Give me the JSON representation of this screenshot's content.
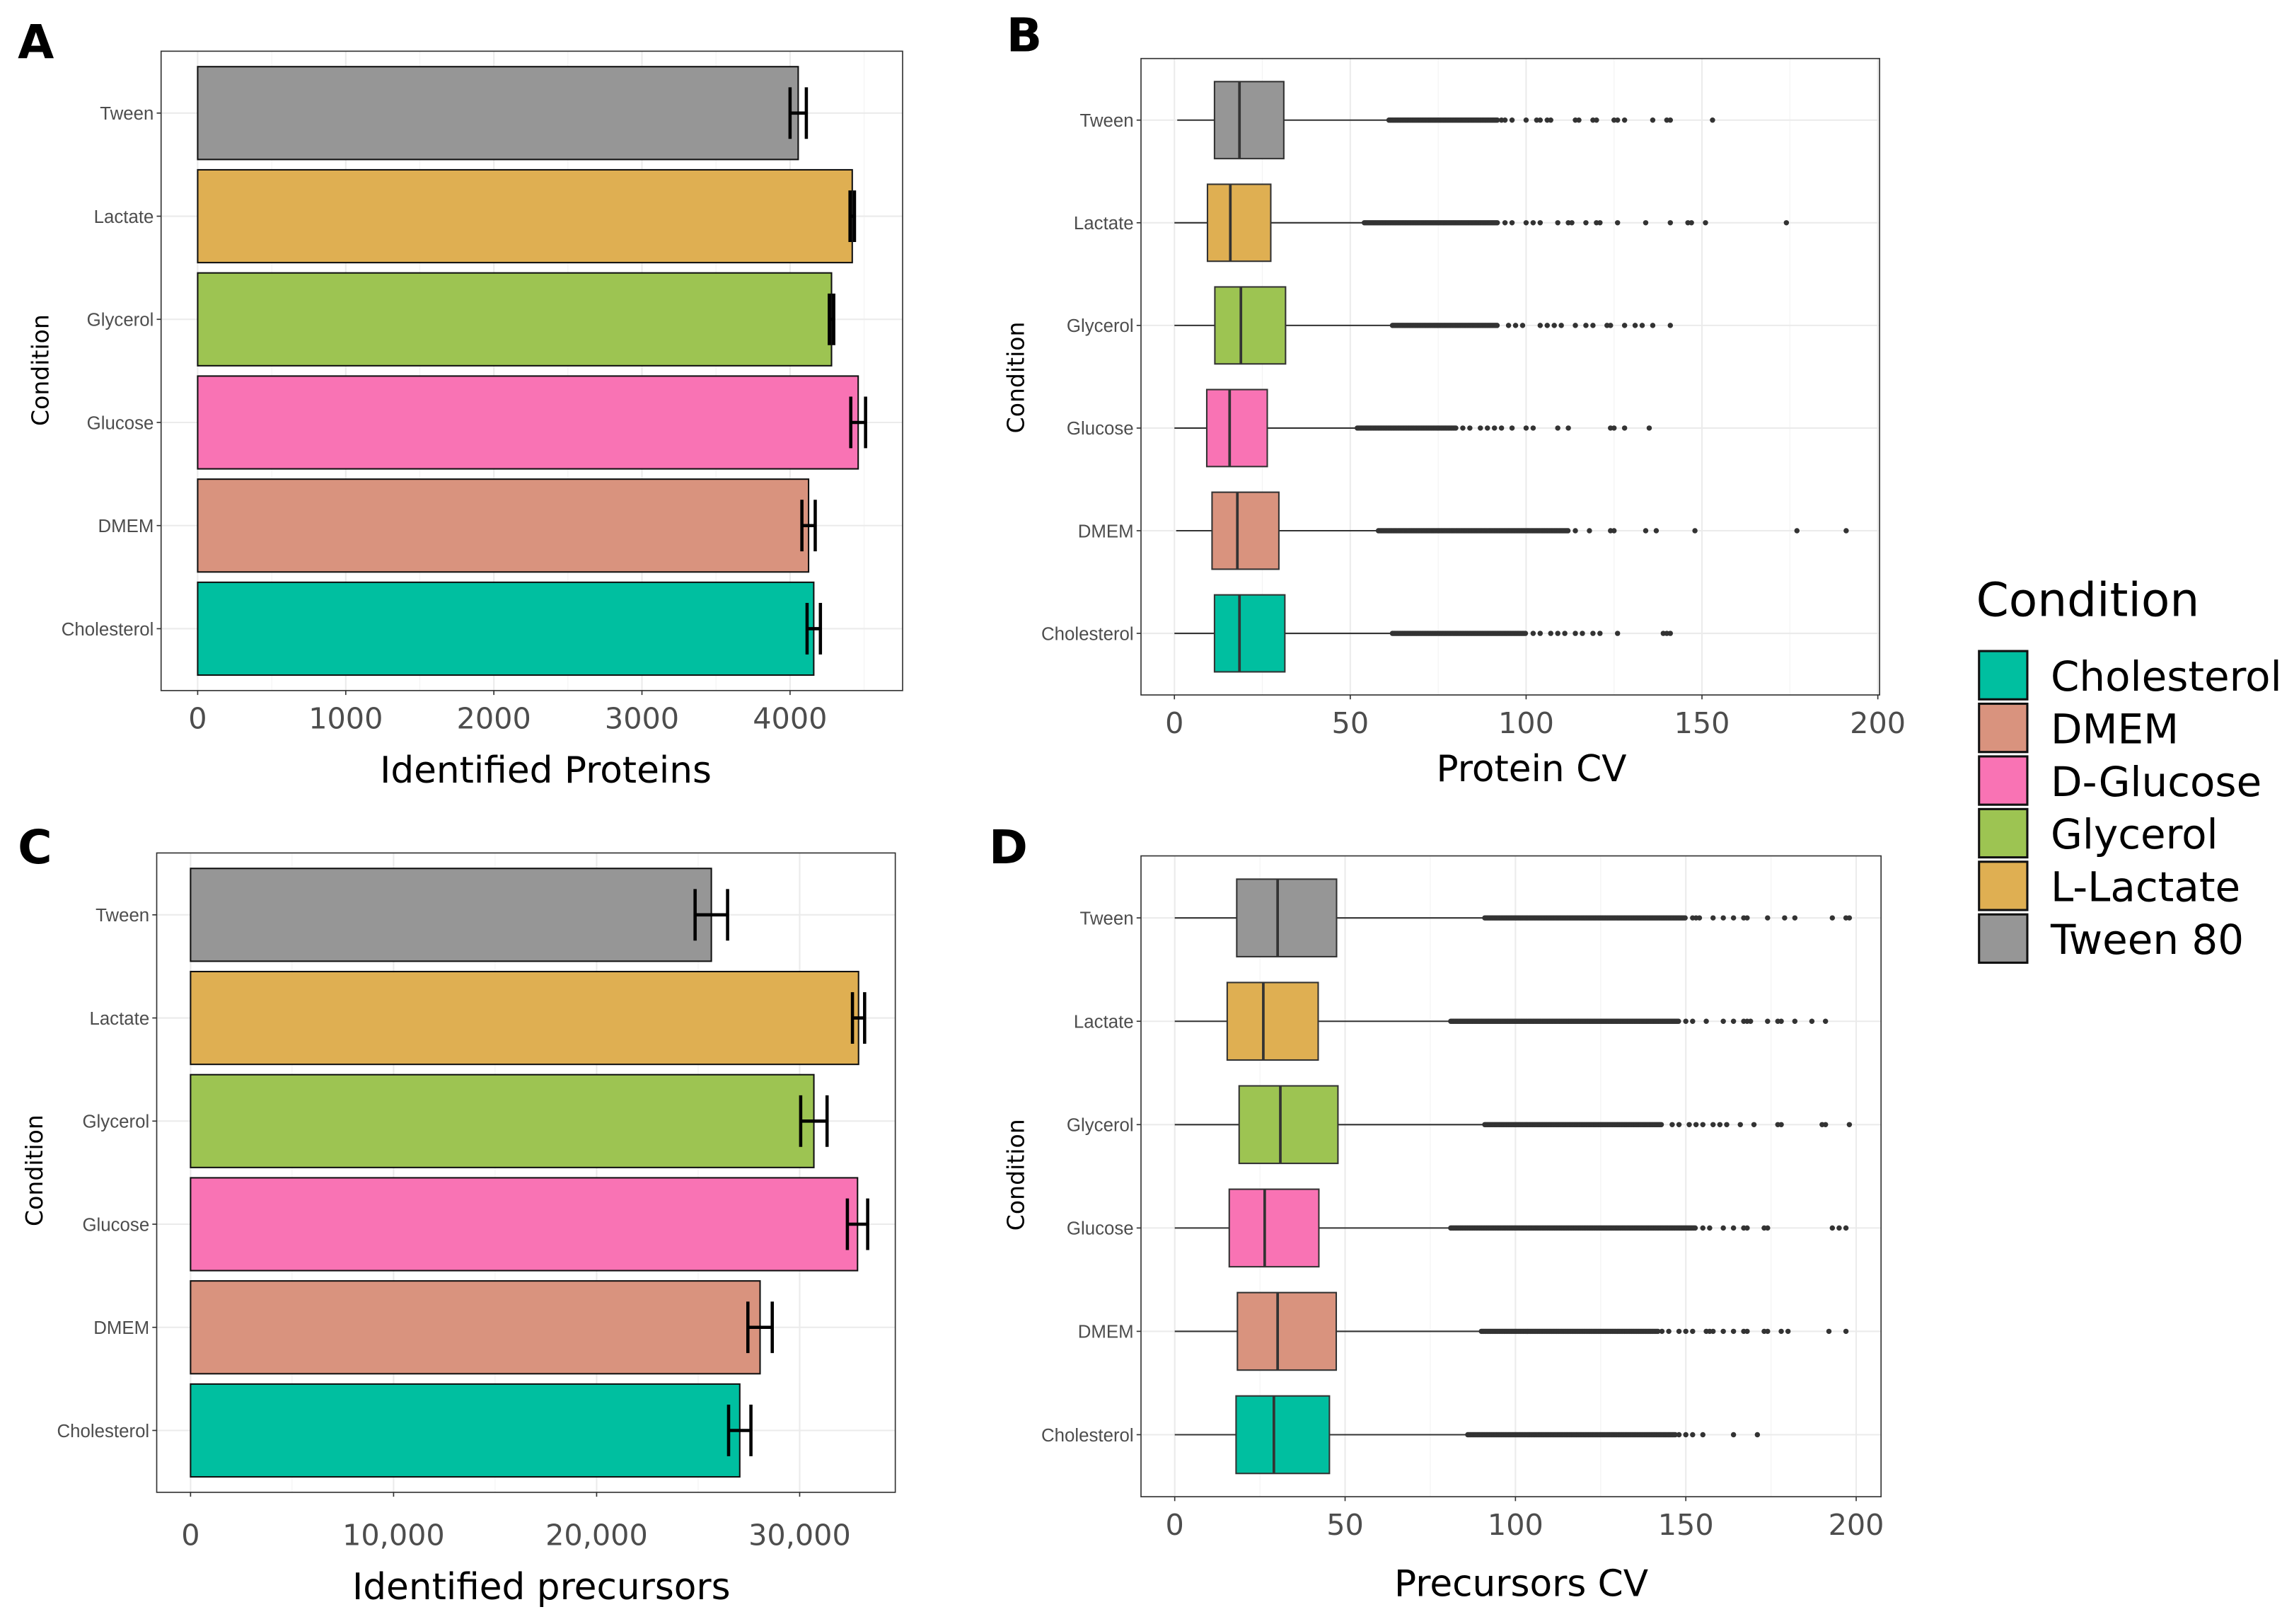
{
  "colors": {
    "Cholesterol": "#00BFA0",
    "DMEM": "#D9937E",
    "Glucose": "#F973B4",
    "Glycerol": "#9DC452",
    "Lactate": "#DFAF52",
    "Tween": "#969696"
  },
  "legend": {
    "title": "Condition",
    "placement": "right",
    "entries": [
      {
        "label": "Cholesterol",
        "key": "Cholesterol"
      },
      {
        "label": "DMEM",
        "key": "DMEM"
      },
      {
        "label": "D-Glucose",
        "key": "Glucose"
      },
      {
        "label": "Glycerol",
        "key": "Glycerol"
      },
      {
        "label": "L-Lactate",
        "key": "Lactate"
      },
      {
        "label": "Tween 80",
        "key": "Tween"
      }
    ]
  },
  "chart_data": [
    {
      "panel": "A",
      "type": "bar",
      "orientation": "horizontal",
      "xlabel": "Identified Proteins",
      "ylabel": "Condition",
      "grid": true,
      "categories": [
        "Tween",
        "Lactate",
        "Glycerol",
        "Glucose",
        "DMEM",
        "Cholesterol"
      ],
      "values": [
        4055,
        4420,
        4280,
        4460,
        4125,
        4160
      ],
      "error": [
        55,
        15,
        15,
        50,
        45,
        45
      ],
      "xlim": [
        -247,
        4760
      ],
      "xticks": [
        0,
        1000,
        2000,
        3000,
        4000
      ],
      "xtick_labels": [
        "0",
        "1000",
        "2000",
        "3000",
        "4000"
      ]
    },
    {
      "panel": "B",
      "type": "box",
      "orientation": "horizontal",
      "xlabel": "Protein CV",
      "ylabel": "Condition",
      "grid": true,
      "categories": [
        "Tween",
        "Lactate",
        "Glycerol",
        "Glucose",
        "DMEM",
        "Cholesterol"
      ],
      "boxes": [
        {
          "whisker_low": 0.8,
          "q1": 11.4,
          "median": 18.5,
          "q3": 31.1,
          "whisker_high": 61,
          "dense_outliers": [
            61,
            92
          ],
          "outliers": [
            93,
            94,
            96,
            100,
            103,
            104,
            106,
            107,
            114,
            115,
            119,
            120,
            125,
            126,
            128,
            136,
            140,
            141,
            153
          ]
        },
        {
          "whisker_low": 0,
          "q1": 9.4,
          "median": 15.9,
          "q3": 27.4,
          "whisker_high": 54,
          "dense_outliers": [
            54,
            92
          ],
          "outliers": [
            94,
            96,
            100,
            102,
            104,
            109,
            112,
            113,
            117,
            120,
            121,
            126,
            134,
            141,
            146,
            147,
            151,
            174
          ]
        },
        {
          "whisker_low": 0,
          "q1": 11.5,
          "median": 18.9,
          "q3": 31.6,
          "whisker_high": 62,
          "dense_outliers": [
            62,
            92
          ],
          "outliers": [
            95,
            97,
            99,
            104,
            106,
            108,
            110,
            114,
            117,
            119,
            123,
            124,
            128,
            131,
            133,
            136,
            141
          ]
        },
        {
          "whisker_low": 0,
          "q1": 9.2,
          "median": 15.7,
          "q3": 26.4,
          "whisker_high": 52,
          "dense_outliers": [
            52,
            80
          ],
          "outliers": [
            82,
            84,
            87,
            89,
            91,
            93,
            96,
            100,
            102,
            109,
            112,
            124,
            125,
            128,
            135
          ]
        },
        {
          "whisker_low": 0.5,
          "q1": 10.7,
          "median": 17.9,
          "q3": 29.7,
          "whisker_high": 58,
          "dense_outliers": [
            58,
            112
          ],
          "outliers": [
            114,
            118,
            124,
            125,
            134,
            137,
            148,
            177,
            191
          ]
        },
        {
          "whisker_low": 0,
          "q1": 11.4,
          "median": 18.5,
          "q3": 31.4,
          "whisker_high": 62,
          "dense_outliers": [
            62,
            100
          ],
          "outliers": [
            102,
            104,
            107,
            109,
            111,
            114,
            116,
            119,
            121,
            126,
            139,
            140,
            141
          ]
        }
      ],
      "xlim": [
        -9.5,
        200.5
      ],
      "xticks": [
        0,
        50,
        100,
        150,
        200
      ],
      "xtick_labels": [
        "0",
        "50",
        "100",
        "150",
        "200"
      ]
    },
    {
      "panel": "C",
      "type": "bar",
      "orientation": "horizontal",
      "xlabel": "Identified precursors",
      "ylabel": "Condition",
      "grid": true,
      "categories": [
        "Tween",
        "Lactate",
        "Glycerol",
        "Glucose",
        "DMEM",
        "Cholesterol"
      ],
      "values": [
        25650,
        32900,
        30700,
        32850,
        28050,
        27050
      ],
      "error": [
        800,
        300,
        650,
        500,
        600,
        550
      ],
      "xlim": [
        -1667,
        34710
      ],
      "xticks": [
        0,
        10000,
        20000,
        30000
      ],
      "xtick_labels": [
        "0",
        "10,000",
        "20,000",
        "30,000"
      ]
    },
    {
      "panel": "D",
      "type": "box",
      "orientation": "horizontal",
      "xlabel": "Precursors CV",
      "ylabel": "Condition",
      "grid": true,
      "categories": [
        "Tween",
        "Lactate",
        "Glycerol",
        "Glucose",
        "DMEM",
        "Cholesterol"
      ],
      "boxes": [
        {
          "whisker_low": 0,
          "q1": 18.2,
          "median": 30.2,
          "q3": 47.5,
          "whisker_high": 91,
          "dense_outliers": [
            91,
            150
          ],
          "outliers": [
            152,
            153,
            154,
            158,
            161,
            164,
            167,
            168,
            174,
            179,
            182,
            193,
            197,
            198
          ]
        },
        {
          "whisker_low": 0,
          "q1": 15.4,
          "median": 26.0,
          "q3": 42.1,
          "whisker_high": 81,
          "dense_outliers": [
            81,
            148
          ],
          "outliers": [
            150,
            152,
            156,
            161,
            164,
            167,
            168,
            169,
            174,
            177,
            178,
            182,
            187,
            191
          ]
        },
        {
          "whisker_low": 0,
          "q1": 18.9,
          "median": 31.0,
          "q3": 47.9,
          "whisker_high": 91,
          "dense_outliers": [
            91,
            143
          ],
          "outliers": [
            146,
            148,
            151,
            153,
            155,
            158,
            160,
            162,
            166,
            170,
            177,
            178,
            190,
            191,
            198
          ]
        },
        {
          "whisker_low": 0,
          "q1": 16.0,
          "median": 26.4,
          "q3": 42.3,
          "whisker_high": 81,
          "dense_outliers": [
            81,
            153
          ],
          "outliers": [
            155,
            157,
            161,
            164,
            167,
            168,
            173,
            174,
            193,
            195,
            197
          ]
        },
        {
          "whisker_low": 0,
          "q1": 18.4,
          "median": 30.2,
          "q3": 47.4,
          "whisker_high": 90,
          "dense_outliers": [
            90,
            142
          ],
          "outliers": [
            143,
            145,
            148,
            150,
            152,
            156,
            157,
            158,
            161,
            164,
            167,
            168,
            173,
            174,
            178,
            180,
            192,
            197
          ]
        },
        {
          "whisker_low": 0,
          "q1": 18.0,
          "median": 29.1,
          "q3": 45.4,
          "whisker_high": 86,
          "dense_outliers": [
            86,
            147
          ],
          "outliers": [
            148,
            150,
            152,
            155,
            164,
            171
          ]
        }
      ],
      "xlim": [
        -9.9,
        207.3
      ],
      "xticks": [
        0,
        50,
        100,
        150,
        200
      ],
      "xtick_labels": [
        "0",
        "50",
        "100",
        "150",
        "200"
      ]
    }
  ]
}
